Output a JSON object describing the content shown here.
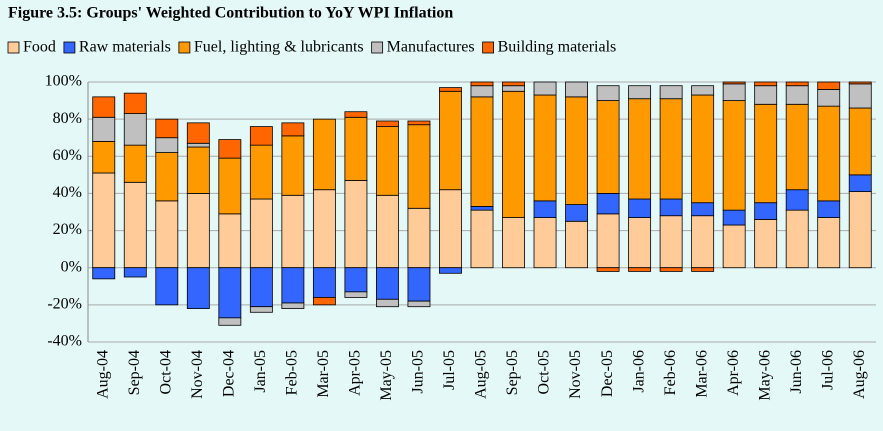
{
  "chart_data": {
    "type": "stacked_bar",
    "title": "Figure 3.5: Groups' Weighted Contribution to YoY WPI Inflation",
    "categories": [
      "Aug-04",
      "Sep-04",
      "Oct-04",
      "Nov-04",
      "Dec-04",
      "Jan-05",
      "Feb-05",
      "Mar-05",
      "Apr-05",
      "May-05",
      "Jun-05",
      "Jul-05",
      "Aug-05",
      "Sep-05",
      "Oct-05",
      "Nov-05",
      "Dec-05",
      "Jan-06",
      "Feb-06",
      "Mar-06",
      "Apr-06",
      "May-06",
      "Jun-06",
      "Jul-06",
      "Aug-06"
    ],
    "series": [
      {
        "name": "Food",
        "color": "#ffcc99",
        "values": [
          51,
          46,
          36,
          40,
          29,
          37,
          39,
          42,
          47,
          39,
          32,
          42,
          31,
          27,
          27,
          25,
          29,
          27,
          28,
          28,
          23,
          26,
          31,
          27,
          41
        ]
      },
      {
        "name": "Raw materials",
        "color": "#3366ff",
        "values": [
          -6,
          -5,
          -20,
          -22,
          -27,
          -21,
          -19,
          -16,
          -13,
          -17,
          -18,
          -3,
          2,
          0,
          9,
          9,
          11,
          10,
          9,
          7,
          8,
          9,
          11,
          9,
          9
        ]
      },
      {
        "name": "Fuel, lighting & lubricants",
        "color": "#ff9900",
        "values": [
          17,
          20,
          26,
          25,
          30,
          29,
          32,
          38,
          34,
          37,
          45,
          53,
          59,
          68,
          57,
          58,
          50,
          54,
          54,
          58,
          59,
          53,
          46,
          51,
          36
        ]
      },
      {
        "name": "Manufactures",
        "color": "#c0c0c0",
        "values": [
          13,
          17,
          8,
          2,
          -4,
          -3,
          -3,
          0,
          -3,
          -4,
          -3,
          0,
          6,
          3,
          7,
          8,
          8,
          7,
          7,
          5,
          9,
          10,
          10,
          9,
          13
        ]
      },
      {
        "name": "Building materials",
        "color": "#ff6600",
        "values": [
          11,
          11,
          10,
          11,
          10,
          10,
          7,
          -4,
          3,
          3,
          2,
          2,
          2,
          2,
          0,
          0,
          -2,
          -2,
          -2,
          -2,
          1,
          2,
          2,
          4,
          1
        ]
      }
    ],
    "ylim": [
      -40,
      100
    ],
    "yticks": [
      {
        "value": -40,
        "label": "-40%"
      },
      {
        "value": -20,
        "label": "-20%"
      },
      {
        "value": 0,
        "label": "0%"
      },
      {
        "value": 20,
        "label": "20%"
      },
      {
        "value": 40,
        "label": "40%"
      },
      {
        "value": 60,
        "label": "60%"
      },
      {
        "value": 80,
        "label": "80%"
      },
      {
        "value": 100,
        "label": "100%"
      }
    ],
    "grid": true
  }
}
